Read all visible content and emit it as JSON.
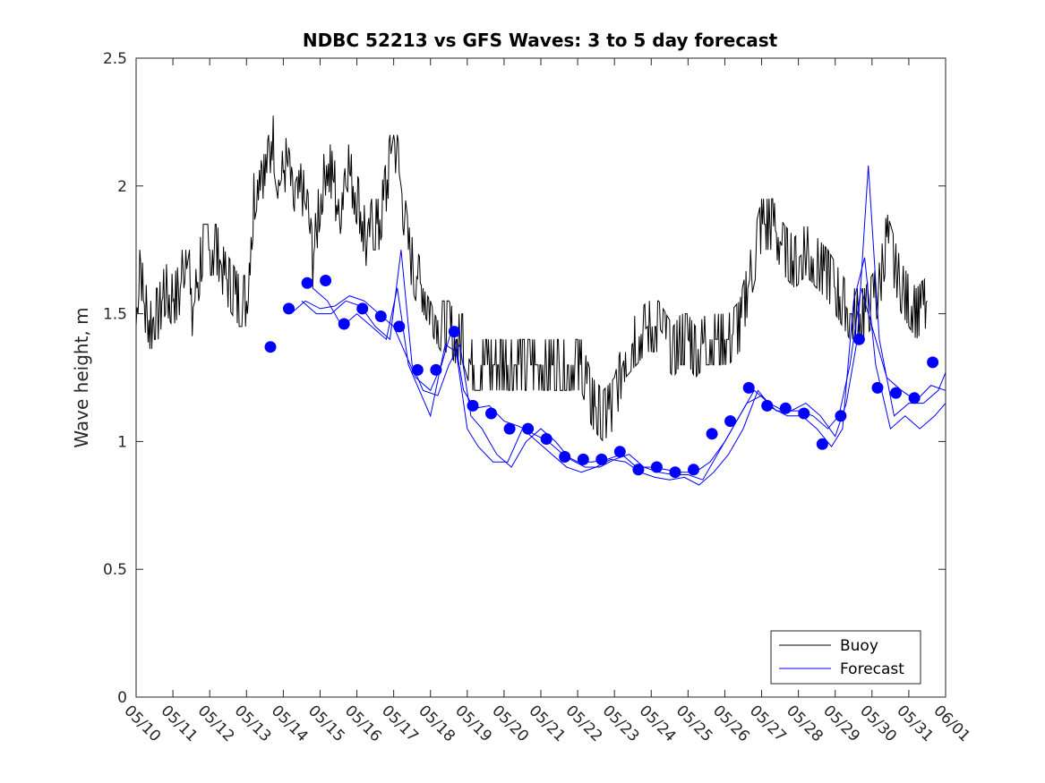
{
  "chart_data": {
    "type": "line",
    "title": "NDBC 52213 vs GFS Waves: 3 to 5 day forecast",
    "xlabel": "",
    "ylabel": "Wave height, m",
    "ylim": [
      0,
      2.5
    ],
    "xlim": [
      "05/10",
      "06/01"
    ],
    "y_ticks": [
      "0",
      "0.5",
      "1",
      "1.5",
      "2",
      "2.5"
    ],
    "x_ticks": [
      "05/10",
      "05/11",
      "05/12",
      "05/13",
      "05/14",
      "05/15",
      "05/16",
      "05/17",
      "05/18",
      "05/19",
      "05/20",
      "05/21",
      "05/22",
      "05/23",
      "05/24",
      "05/25",
      "05/26",
      "05/27",
      "05/28",
      "05/29",
      "05/30",
      "05/31",
      "06/01"
    ],
    "legend": {
      "placement": "bottom-right",
      "entries": [
        "Buoy",
        "Forecast"
      ]
    },
    "colors": {
      "buoy": "#000000",
      "forecast": "#0000ff"
    },
    "grid": false,
    "series": [
      {
        "name": "Buoy",
        "x": [
          0,
          0.1,
          0.2,
          0.3,
          0.4,
          0.5,
          0.6,
          0.8,
          1.0,
          1.2,
          1.4,
          1.5,
          1.6,
          1.8,
          2.0,
          2.2,
          2.4,
          2.6,
          2.8,
          3.0,
          3.2,
          3.4,
          3.5,
          3.7,
          3.9,
          4.1,
          4.3,
          4.5,
          4.7,
          4.8,
          5.0,
          5.2,
          5.4,
          5.5,
          5.7,
          5.9,
          6.1,
          6.3,
          6.4,
          6.6,
          6.8,
          7.0,
          7.2,
          7.4,
          7.6,
          7.8,
          8.0,
          8.1,
          8.3,
          8.5,
          8.7,
          8.9,
          9.1,
          9.3,
          9.5,
          9.7,
          10.0,
          10.3,
          10.6,
          10.9,
          11.2,
          11.5,
          11.8,
          12.1,
          12.4,
          12.7,
          13.0,
          13.3,
          13.6,
          13.9,
          14.2,
          14.4,
          14.6,
          14.8,
          15.0,
          15.2,
          15.5,
          15.8,
          16.1,
          16.4,
          16.7,
          17.0,
          17.3,
          17.6,
          17.9,
          18.2,
          18.5,
          18.8,
          19.0,
          19.2,
          19.4,
          19.6,
          19.8,
          20.0,
          20.2,
          20.4,
          20.6,
          20.8,
          21.0,
          21.2,
          21.5
        ],
        "values": [
          1.45,
          1.75,
          1.55,
          1.5,
          1.45,
          1.5,
          1.5,
          1.6,
          1.55,
          1.6,
          1.8,
          1.5,
          1.55,
          1.75,
          1.75,
          1.75,
          1.65,
          1.6,
          1.55,
          1.55,
          1.95,
          2.1,
          2.0,
          2.2,
          2.0,
          2.1,
          1.9,
          2.0,
          1.85,
          1.7,
          1.95,
          2.1,
          2.0,
          1.85,
          2.1,
          2.0,
          1.9,
          1.75,
          1.85,
          1.85,
          2.0,
          2.2,
          2.0,
          1.75,
          1.65,
          1.6,
          1.55,
          1.5,
          1.45,
          1.45,
          1.4,
          1.4,
          1.3,
          1.3,
          1.3,
          1.3,
          1.3,
          1.3,
          1.3,
          1.3,
          1.3,
          1.3,
          1.3,
          1.3,
          1.15,
          1.1,
          1.15,
          1.35,
          1.4,
          1.45,
          1.45,
          1.4,
          1.35,
          1.4,
          1.4,
          1.35,
          1.4,
          1.4,
          1.4,
          1.45,
          1.65,
          1.85,
          1.85,
          1.75,
          1.7,
          1.75,
          1.7,
          1.65,
          1.6,
          1.55,
          1.5,
          1.5,
          1.5,
          1.55,
          1.6,
          1.8,
          1.7,
          1.6,
          1.55,
          1.5,
          1.55
        ]
      },
      {
        "name": "Forecast",
        "markers": {
          "x": [
            3.65,
            4.15,
            4.65,
            5.15,
            5.65,
            6.15,
            6.65,
            7.15,
            7.65,
            8.15,
            8.65,
            9.15,
            9.65,
            10.15,
            10.65,
            11.15,
            11.65,
            12.15,
            12.65,
            13.15,
            13.65,
            14.15,
            14.65,
            15.15,
            15.65,
            16.15,
            16.65,
            17.15,
            17.65,
            18.15,
            18.65,
            19.15,
            19.65,
            20.15,
            20.65,
            21.15,
            21.65
          ],
          "values": [
            1.37,
            1.52,
            1.62,
            1.63,
            1.46,
            1.52,
            1.49,
            1.45,
            1.28,
            1.28,
            1.43,
            1.14,
            1.11,
            1.05,
            1.05,
            1.01,
            0.94,
            0.93,
            0.93,
            0.96,
            0.89,
            0.9,
            0.88,
            0.89,
            1.03,
            1.08,
            1.21,
            1.14,
            1.13,
            1.11,
            0.99,
            1.1,
            1.4,
            1.21,
            1.19,
            1.17,
            1.31
          ]
        },
        "runs": [
          {
            "x": [
              4.2,
              4.6,
              5.0,
              5.4,
              5.8,
              6.2,
              6.6,
              7.0,
              7.3,
              7.6,
              8.0,
              8.3,
              8.6,
              8.9,
              9.2,
              9.6,
              10.0,
              10.4,
              10.8,
              11.2,
              11.6,
              12.0,
              12.4,
              12.8,
              13.2,
              13.6,
              14.0,
              14.4,
              14.8,
              15.2,
              15.6,
              16.0,
              16.4,
              16.8,
              17.2,
              17.6,
              18.0,
              18.4,
              18.8,
              19.1,
              19.4,
              19.7,
              20.0,
              20.4,
              20.8,
              21.2,
              21.6,
              22.0
            ],
            "values": [
              1.5,
              1.55,
              1.52,
              1.53,
              1.57,
              1.55,
              1.5,
              1.45,
              1.35,
              1.25,
              1.2,
              1.3,
              1.45,
              1.2,
              1.13,
              1.14,
              1.08,
              1.06,
              1.03,
              1.0,
              0.95,
              0.92,
              0.92,
              0.93,
              0.95,
              0.9,
              0.9,
              0.89,
              0.88,
              0.88,
              0.92,
              1.0,
              1.1,
              1.2,
              1.15,
              1.12,
              1.12,
              1.1,
              1.05,
              1.1,
              1.3,
              1.6,
              1.45,
              1.25,
              1.2,
              1.16,
              1.22,
              1.2
            ]
          },
          {
            "x": [
              4.5,
              4.9,
              5.3,
              5.7,
              6.1,
              6.5,
              6.9,
              7.2,
              7.5,
              7.8,
              8.2,
              8.5,
              8.8,
              9.1,
              9.4,
              9.8,
              10.2,
              10.6,
              11.0,
              11.4,
              11.8,
              12.2,
              12.6,
              13.0,
              13.4,
              13.8,
              14.2,
              14.6,
              15.0,
              15.4,
              15.8,
              16.2,
              16.6,
              17.0,
              17.4,
              17.8,
              18.2,
              18.6,
              19.0,
              19.3,
              19.6,
              19.9,
              20.2,
              20.6,
              21.0,
              21.4,
              21.8,
              22.0
            ],
            "values": [
              1.55,
              1.5,
              1.5,
              1.55,
              1.53,
              1.45,
              1.4,
              1.75,
              1.3,
              1.2,
              1.18,
              1.3,
              1.38,
              1.1,
              1.05,
              0.95,
              0.9,
              1.0,
              1.05,
              1.0,
              0.93,
              0.9,
              0.9,
              0.93,
              0.95,
              0.9,
              0.88,
              0.87,
              0.87,
              0.85,
              0.95,
              1.05,
              1.15,
              1.18,
              1.12,
              1.12,
              1.15,
              1.1,
              1.02,
              1.15,
              1.4,
              2.08,
              1.4,
              1.1,
              1.15,
              1.15,
              1.2,
              1.27
            ]
          },
          {
            "x": [
              4.8,
              5.2,
              5.6,
              6.0,
              6.4,
              6.8,
              7.1,
              7.4,
              7.7,
              8.0,
              8.4,
              8.7,
              9.0,
              9.3,
              9.7,
              10.1,
              10.5,
              10.9,
              11.3,
              11.7,
              12.1,
              12.5,
              12.9,
              13.3,
              13.7,
              14.1,
              14.5,
              14.9,
              15.3,
              15.7,
              16.1,
              16.5,
              16.9,
              17.3,
              17.7,
              18.1,
              18.5,
              18.9,
              19.2,
              19.5,
              19.8,
              20.1,
              20.5,
              20.9,
              21.3,
              21.7,
              22.0
            ],
            "values": [
              1.6,
              1.55,
              1.45,
              1.5,
              1.45,
              1.4,
              1.6,
              1.3,
              1.2,
              1.1,
              1.38,
              1.35,
              1.05,
              0.98,
              0.92,
              0.92,
              1.05,
              1.0,
              0.95,
              0.9,
              0.88,
              0.9,
              0.93,
              0.92,
              0.88,
              0.86,
              0.85,
              0.86,
              0.83,
              0.88,
              0.95,
              1.05,
              1.2,
              1.13,
              1.1,
              1.1,
              1.05,
              0.98,
              1.05,
              1.55,
              1.72,
              1.3,
              1.05,
              1.1,
              1.05,
              1.1,
              1.15
            ]
          }
        ]
      }
    ]
  }
}
